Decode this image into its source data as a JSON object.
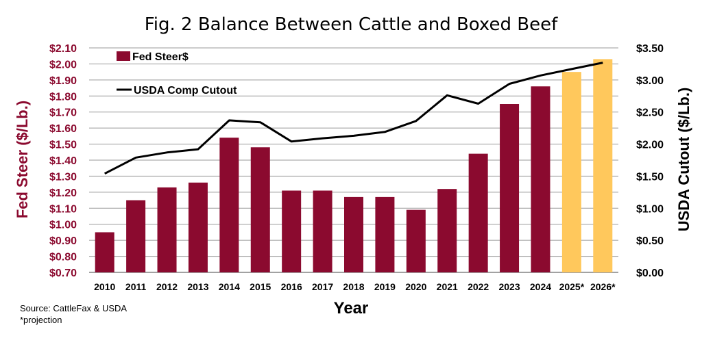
{
  "chart_data": {
    "type": "bar+line",
    "title": "Fig. 2 Balance Between Cattle and Boxed Beef",
    "xlabel": "Year",
    "ylabel_left": "Fed Steer ($/Lb.)",
    "ylabel_right": "USDA Cutout ($/Lb.)",
    "categories": [
      "2010",
      "2011",
      "2012",
      "2013",
      "2014",
      "2015",
      "2016",
      "2017",
      "2018",
      "2019",
      "2020",
      "2021",
      "2022",
      "2023",
      "2024",
      "2025*",
      "2026*"
    ],
    "y_left": {
      "range": [
        0.7,
        2.1
      ],
      "ticks": [
        0.7,
        0.8,
        0.9,
        1.0,
        1.1,
        1.2,
        1.3,
        1.4,
        1.5,
        1.6,
        1.7,
        1.8,
        1.9,
        2.0,
        2.1
      ],
      "tick_labels": [
        "$0.70",
        "$0.80",
        "$0.90",
        "$1.00",
        "$1.10",
        "$1.20",
        "$1.30",
        "$1.40",
        "$1.50",
        "$1.60",
        "$1.70",
        "$1.80",
        "$1.90",
        "$2.00",
        "$2.10"
      ]
    },
    "y_right": {
      "range": [
        0,
        3.5
      ],
      "ticks": [
        0,
        0.5,
        1.0,
        1.5,
        2.0,
        2.5,
        3.0,
        3.5
      ],
      "tick_labels": [
        "$0.00",
        "$0.50",
        "$1.00",
        "$1.50",
        "$2.00",
        "$2.50",
        "$3.00",
        "$3.50"
      ]
    },
    "series": [
      {
        "name": "Fed Steer$",
        "kind": "bar",
        "axis": "left",
        "color": "#8B0A2F",
        "projection_color": "#FFC85C",
        "projection_categories": [
          "2025*",
          "2026*"
        ],
        "values": [
          0.95,
          1.15,
          1.23,
          1.26,
          1.54,
          1.48,
          1.21,
          1.21,
          1.17,
          1.17,
          1.09,
          1.22,
          1.44,
          1.75,
          1.86,
          1.95,
          2.03
        ]
      },
      {
        "name": "USDA Comp Cutout",
        "kind": "line",
        "axis": "right",
        "color": "#000000",
        "values": [
          1.54,
          1.79,
          1.87,
          1.92,
          2.37,
          2.34,
          2.04,
          2.09,
          2.13,
          2.19,
          2.36,
          2.76,
          2.63,
          2.94,
          3.07,
          3.17,
          3.27
        ]
      }
    ],
    "gridlines": true,
    "legend_position": "top-left"
  },
  "source": {
    "line1": "Source: CattleFax & USDA",
    "line2": "*projection"
  }
}
